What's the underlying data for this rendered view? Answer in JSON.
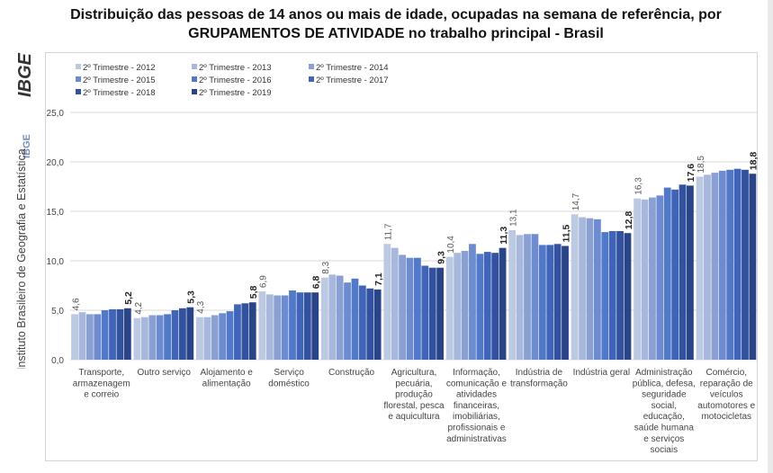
{
  "title_line1": "Distribuição das pessoas de 14 anos ou mais de idade, ocupadas na semana de referência, por",
  "title_line2": "GRUPAMENTOS DE ATIVIDADE no trabalho principal - Brasil",
  "brand": {
    "logo_text": "IBGE",
    "small_text": "IBGE",
    "institute_name": "Instituto Brasileiro de Geografia e Estatística"
  },
  "colors": {
    "series": [
      "#bcc9e3",
      "#a8b8dc",
      "#8aa0d3",
      "#6d8bd0",
      "#5178c9",
      "#3f64b8",
      "#32529f",
      "#2a4488"
    ],
    "grid": "#d9d9d9",
    "axis_text": "#444444",
    "label_text": "#555555"
  },
  "chart_data": {
    "type": "bar",
    "ylim": [
      0,
      25
    ],
    "yticks": [
      "0,0",
      "5,0",
      "10,0",
      "15,0",
      "20,0",
      "25,0"
    ],
    "grid": true,
    "legend_position": "top-left",
    "categories": [
      [
        "Transporte,",
        "armazenagem",
        "e correio"
      ],
      [
        "Outro serviço"
      ],
      [
        "Alojamento e",
        "alimentação"
      ],
      [
        "Serviço",
        "doméstico"
      ],
      [
        "Construção"
      ],
      [
        "Agricultura,",
        "pecuária,",
        "produção",
        "florestal, pesca",
        "e aquicultura"
      ],
      [
        "Informação,",
        "comunicação e",
        "atividades",
        "financeiras,",
        "imobiliárias,",
        "profissionais e",
        "administrativas"
      ],
      [
        "Indústria de",
        "transformação"
      ],
      [
        "Indústria geral"
      ],
      [
        "Administração",
        "pública, defesa,",
        "seguridade",
        "social,",
        "educação,",
        "saúde humana",
        "e serviços",
        "sociais"
      ],
      [
        "Comércio,",
        "reparação de",
        "veículos",
        "automotores e",
        "motocicletas"
      ]
    ],
    "series": [
      {
        "name": "2º Trimestre - 2012",
        "values": [
          4.6,
          4.2,
          4.3,
          6.9,
          8.3,
          11.7,
          10.4,
          13.1,
          14.7,
          16.3,
          18.5
        ]
      },
      {
        "name": "2º Trimestre - 2013",
        "values": [
          4.8,
          4.3,
          4.3,
          6.6,
          8.6,
          11.3,
          10.8,
          12.6,
          14.4,
          16.2,
          18.7
        ]
      },
      {
        "name": "2º Trimestre - 2014",
        "values": [
          4.6,
          4.5,
          4.5,
          6.5,
          8.5,
          10.6,
          11.0,
          12.7,
          14.3,
          16.4,
          18.9
        ]
      },
      {
        "name": "2º Trimestre - 2015",
        "values": [
          4.6,
          4.5,
          4.7,
          6.5,
          7.8,
          10.3,
          11.7,
          12.7,
          14.2,
          16.6,
          19.1
        ]
      },
      {
        "name": "2º Trimestre - 2016",
        "values": [
          5.0,
          4.6,
          4.9,
          7.0,
          8.2,
          10.3,
          10.7,
          11.6,
          12.9,
          17.4,
          19.2
        ]
      },
      {
        "name": "2º Trimestre - 2017",
        "values": [
          5.1,
          5.0,
          5.6,
          6.8,
          7.5,
          9.5,
          10.9,
          11.6,
          13.0,
          17.2,
          19.3
        ]
      },
      {
        "name": "2º Trimestre - 2018",
        "values": [
          5.1,
          5.2,
          5.7,
          6.8,
          7.2,
          9.3,
          10.8,
          11.7,
          13.0,
          17.7,
          19.2
        ]
      },
      {
        "name": "2º Trimestre - 2019",
        "values": [
          5.2,
          5.3,
          5.8,
          6.8,
          7.1,
          9.3,
          11.3,
          11.5,
          12.8,
          17.6,
          18.8
        ]
      }
    ],
    "data_labels": {
      "first": [
        "4,6",
        "4,2",
        "4,3",
        "6,9",
        "8,3",
        "11,7",
        "10,4",
        "13,1",
        "14,7",
        "16,3",
        "18,5"
      ],
      "last": [
        "5,2",
        "5,3",
        "5,8",
        "6,8",
        "7,1",
        "9,3",
        "11,3",
        "11,5",
        "12,8",
        "17,6",
        "18,8"
      ]
    }
  }
}
